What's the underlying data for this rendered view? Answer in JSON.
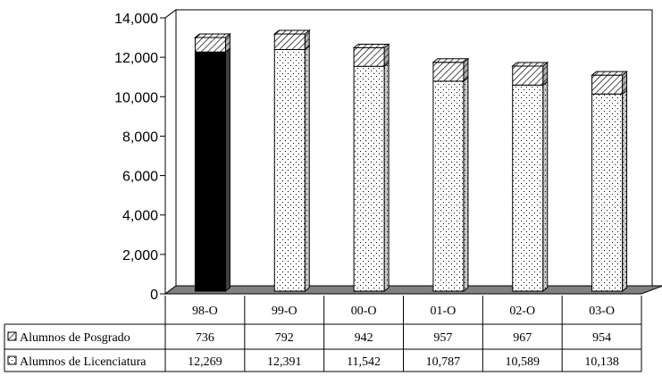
{
  "chart_data": {
    "type": "bar",
    "stacked": true,
    "three_d": true,
    "categories": [
      "98-O",
      "99-O",
      "00-O",
      "01-O",
      "02-O",
      "03-O"
    ],
    "series": [
      {
        "name": "Alumnos de Licenciatura",
        "values": [
          12269,
          12391,
          11542,
          10787,
          10589,
          10138
        ],
        "pattern": "dots"
      },
      {
        "name": "Alumnos de Posgrado",
        "values": [
          736,
          792,
          942,
          957,
          967,
          954
        ],
        "pattern": "diagonal-hatch"
      }
    ],
    "table_labels": {
      "values": [
        [
          "12,269",
          "12,391",
          "11,542",
          "10,787",
          "10,589",
          "10,138"
        ],
        [
          "736",
          "792",
          "942",
          "957",
          "967",
          "954"
        ]
      ]
    },
    "highlight_index": 0,
    "highlight_color": "#000000",
    "ylim": [
      0,
      14000
    ],
    "yticks": [
      "0",
      "2,000",
      "4,000",
      "6,000",
      "8,000",
      "10,000",
      "12,000",
      "14,000"
    ],
    "grid": true,
    "floor_color": "#808080",
    "title": "",
    "xlabel": "",
    "ylabel": ""
  }
}
